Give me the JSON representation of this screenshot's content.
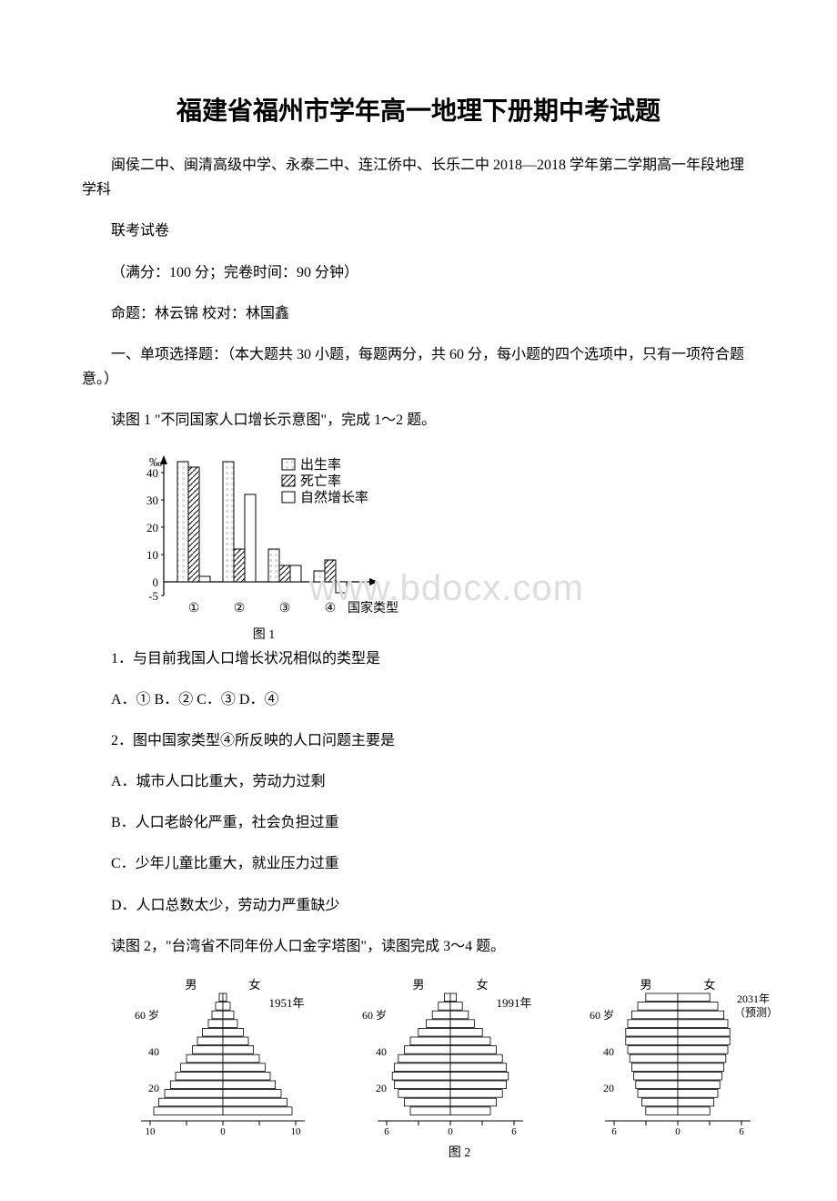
{
  "title": "福建省福州市学年高一地理下册期中考试题",
  "p1": "闽侯二中、闽清高级中学、永泰二中、连江侨中、长乐二中 2018—2018 学年第二学期高一年段地理学科",
  "p2": "联考试卷",
  "p3": "（满分：100 分；完卷时间：90 分钟）",
  "p4": "命题：林云锦 校对：林国鑫",
  "p5": "一、单项选择题：（本大题共 30 小题，每题两分，共 60 分，每小题的四个选项中，只有一项符合题意。）",
  "p6": "读图 1 \"不同国家人口增长示意图\"，完成 1～2 题。",
  "fig1_caption": "图 1",
  "q1": "1．与目前我国人口增长状况相似的类型是",
  "q1_opts": "A．① B．② C．③ D．④",
  "q2": "2．图中国家类型④所反映的人口问题主要是",
  "q2a": "A．城市人口比重大，劳动力过剩",
  "q2b": "B．人口老龄化严重，社会负担过重",
  "q2c": "C．少年儿童比重大，就业压力过重",
  "q2d": "D．人口总数太少，劳动力严重缺少",
  "p7": "读图 2，\"台湾省不同年份人口金字塔图\"，读图完成 3～4 题。",
  "fig2_caption": "图 2",
  "watermark": "www.bdocx.com",
  "chart1": {
    "y_unit": "‰",
    "y_ticks": [
      40,
      30,
      20,
      10,
      0,
      -5
    ],
    "x_labels": [
      "①",
      "②",
      "③",
      "④"
    ],
    "x_title": "国家类型",
    "legend": [
      "出生率",
      "死亡率",
      "自然增长率"
    ],
    "series": {
      "birth": [
        44,
        44,
        12,
        4
      ],
      "death": [
        42,
        12,
        6,
        8
      ],
      "natural": [
        2,
        32,
        6,
        -4
      ]
    },
    "colors": {
      "axis": "#000000",
      "bg": "#ffffff",
      "bar_fill": "#ffffff",
      "bar_stroke": "#000000"
    }
  },
  "pyramids": {
    "male": "男",
    "female": "女",
    "labels": [
      {
        "caption": "1951年",
        "x_range": 10,
        "ticks": [
          10,
          0,
          10
        ],
        "ages": [
          60,
          40,
          20
        ]
      },
      {
        "caption": "1991年",
        "x_range": 6,
        "ticks": [
          6,
          0,
          6
        ],
        "ages": [
          60,
          40,
          20
        ]
      },
      {
        "caption": "2031年\n（预测）",
        "x_range": 6,
        "ticks": [
          6,
          0,
          6
        ],
        "ages": [
          60,
          40,
          20
        ]
      }
    ],
    "age_suffix": "岁"
  }
}
